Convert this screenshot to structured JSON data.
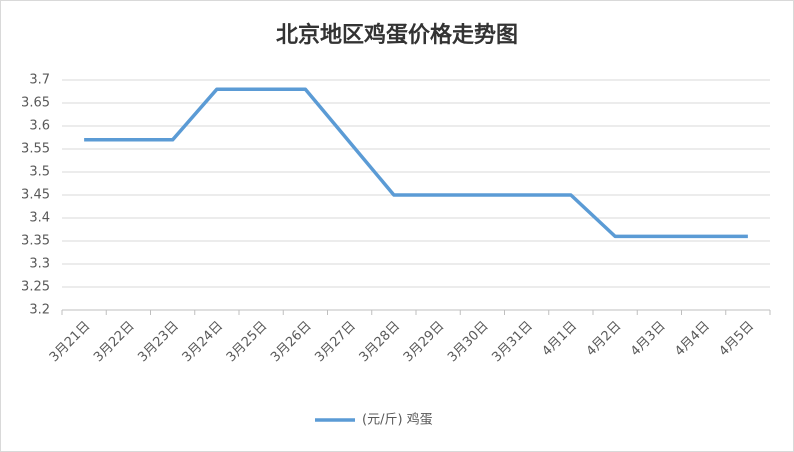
{
  "chart_data": {
    "type": "line",
    "title": "北京地区鸡蛋价格走势图",
    "categories": [
      "3月21日",
      "3月22日",
      "3月23日",
      "3月24日",
      "3月25日",
      "3月26日",
      "3月27日",
      "3月28日",
      "3月29日",
      "3月30日",
      "3月31日",
      "4月1日",
      "4月2日",
      "4月3日",
      "4月4日",
      "4月5日"
    ],
    "series": [
      {
        "name": "(元/斤) 鸡蛋",
        "color": "#5b9bd5",
        "values": [
          3.57,
          3.57,
          3.57,
          3.68,
          3.68,
          3.68,
          3.565,
          3.45,
          3.45,
          3.45,
          3.45,
          3.45,
          3.36,
          3.36,
          3.36,
          3.36
        ]
      }
    ],
    "ylim": [
      3.2,
      3.7
    ],
    "yticks": [
      3.2,
      3.25,
      3.3,
      3.35,
      3.4,
      3.45,
      3.5,
      3.55,
      3.6,
      3.65,
      3.7
    ],
    "grid": true,
    "legend": "bottom"
  }
}
